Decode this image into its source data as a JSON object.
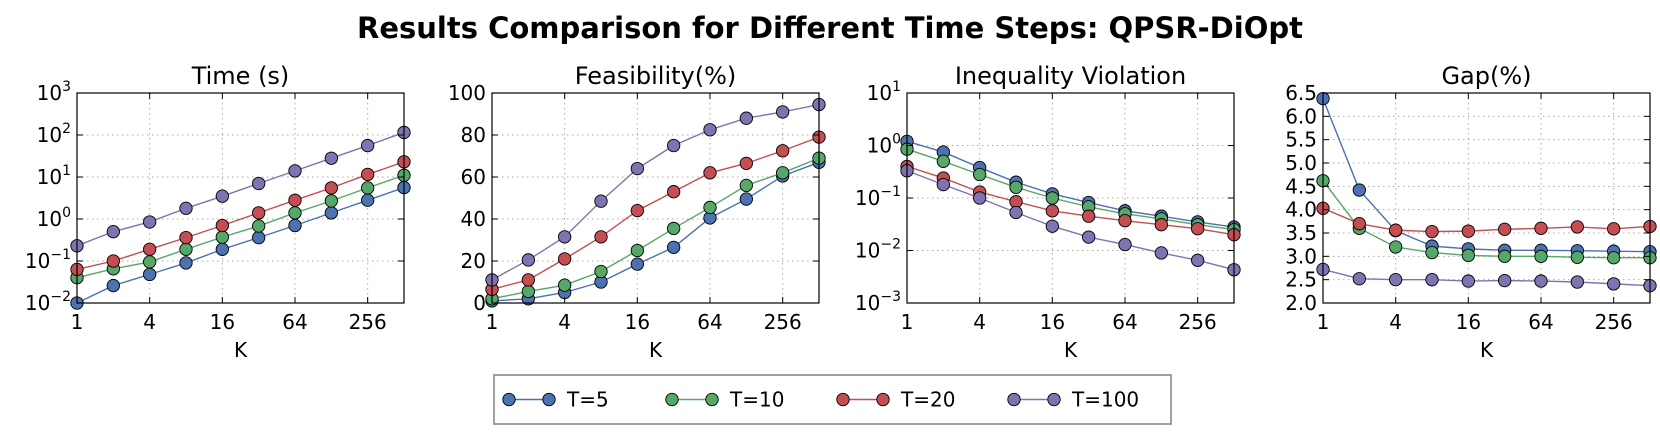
{
  "figure": {
    "title": "Results Comparison for Different Time Steps: QPSR-DiOpt",
    "colors": {
      "T=5": "#4c72b0",
      "T=10": "#55a868",
      "T=20": "#c44e52",
      "T=100": "#8172b2"
    }
  },
  "legend": {
    "placement": "bottom-center",
    "entries": [
      "T=5",
      "T=10",
      "T=20",
      "T=100"
    ]
  },
  "chart_data": [
    {
      "type": "line",
      "title": "Time (s)",
      "xlabel": "K",
      "ylabel": "",
      "xscale": "log2",
      "yscale": "log10",
      "x": [
        1,
        2,
        4,
        8,
        16,
        32,
        64,
        128,
        256,
        512
      ],
      "xticks": [
        1,
        4,
        16,
        64,
        256
      ],
      "xticklabels": [
        "1",
        "4",
        "16",
        "64",
        "256"
      ],
      "ylim": [
        0.01,
        1000
      ],
      "yticks": [
        0.01,
        0.1,
        1,
        10,
        100,
        1000
      ],
      "yticklabels": [
        [
          "10",
          "−2"
        ],
        [
          "10",
          "−1"
        ],
        [
          "10",
          "0"
        ],
        [
          "10",
          "1"
        ],
        [
          "10",
          "2"
        ],
        [
          "10",
          "3"
        ]
      ],
      "grid": true,
      "series": [
        {
          "name": "T=5",
          "values": [
            0.01,
            0.026,
            0.048,
            0.09,
            0.19,
            0.36,
            0.7,
            1.4,
            2.8,
            5.6
          ]
        },
        {
          "name": "T=10",
          "values": [
            0.04,
            0.065,
            0.095,
            0.19,
            0.37,
            0.68,
            1.4,
            2.7,
            5.5,
            11
          ]
        },
        {
          "name": "T=20",
          "values": [
            0.063,
            0.1,
            0.19,
            0.36,
            0.7,
            1.4,
            2.8,
            5.5,
            11.5,
            23
          ]
        },
        {
          "name": "T=100",
          "values": [
            0.23,
            0.5,
            0.85,
            1.8,
            3.5,
            7,
            14,
            28,
            56,
            115
          ]
        }
      ]
    },
    {
      "type": "line",
      "title": "Feasibility(%)",
      "xlabel": "K",
      "ylabel": "",
      "xscale": "log2",
      "yscale": "linear",
      "x": [
        1,
        2,
        4,
        8,
        16,
        32,
        64,
        128,
        256,
        512
      ],
      "xticks": [
        1,
        4,
        16,
        64,
        256
      ],
      "xticklabels": [
        "1",
        "4",
        "16",
        "64",
        "256"
      ],
      "ylim": [
        0,
        100
      ],
      "yticks": [
        0,
        20,
        40,
        60,
        80,
        100
      ],
      "yticklabels": [
        [
          "0",
          ""
        ],
        [
          "20",
          ""
        ],
        [
          "40",
          ""
        ],
        [
          "60",
          ""
        ],
        [
          "80",
          ""
        ],
        [
          "100",
          ""
        ]
      ],
      "grid": true,
      "series": [
        {
          "name": "T=5",
          "values": [
            1,
            2,
            5,
            10,
            18.5,
            26.5,
            40.5,
            49.5,
            60.5,
            67
          ]
        },
        {
          "name": "T=10",
          "values": [
            2,
            5.5,
            8.5,
            15,
            25,
            35.5,
            45.5,
            56,
            62,
            69
          ]
        },
        {
          "name": "T=20",
          "values": [
            6.5,
            11,
            21,
            31.5,
            44,
            53,
            62,
            66.5,
            72.5,
            79
          ]
        },
        {
          "name": "T=100",
          "values": [
            11,
            20.5,
            31.5,
            48.5,
            64,
            75,
            82.5,
            88,
            91,
            94.5
          ]
        }
      ]
    },
    {
      "type": "line",
      "title": "Inequality Violation",
      "xlabel": "K",
      "ylabel": "",
      "xscale": "log2",
      "yscale": "log10",
      "x": [
        1,
        2,
        4,
        8,
        16,
        32,
        64,
        128,
        256,
        512
      ],
      "xticks": [
        1,
        4,
        16,
        64,
        256
      ],
      "xticklabels": [
        "1",
        "4",
        "16",
        "64",
        "256"
      ],
      "ylim": [
        0.001,
        10
      ],
      "yticks": [
        0.001,
        0.01,
        0.1,
        1,
        10
      ],
      "yticklabels": [
        [
          "10",
          "−3"
        ],
        [
          "10",
          "−2"
        ],
        [
          "10",
          "−1"
        ],
        [
          "10",
          "0"
        ],
        [
          "10",
          "1"
        ]
      ],
      "grid": true,
      "series": [
        {
          "name": "T=5",
          "values": [
            1.2,
            0.75,
            0.38,
            0.2,
            0.12,
            0.082,
            0.057,
            0.045,
            0.035,
            0.028
          ]
        },
        {
          "name": "T=10",
          "values": [
            0.85,
            0.5,
            0.28,
            0.16,
            0.1,
            0.068,
            0.05,
            0.04,
            0.031,
            0.025
          ]
        },
        {
          "name": "T=20",
          "values": [
            0.4,
            0.24,
            0.13,
            0.085,
            0.057,
            0.045,
            0.037,
            0.031,
            0.026,
            0.02
          ]
        },
        {
          "name": "T=100",
          "values": [
            0.33,
            0.18,
            0.1,
            0.053,
            0.029,
            0.018,
            0.013,
            0.009,
            0.0065,
            0.0043
          ]
        }
      ]
    },
    {
      "type": "line",
      "title": "Gap(%)",
      "xlabel": "K",
      "ylabel": "",
      "xscale": "log2",
      "yscale": "linear",
      "x": [
        1,
        2,
        4,
        8,
        16,
        32,
        64,
        128,
        256,
        512
      ],
      "xticks": [
        1,
        4,
        16,
        64,
        256
      ],
      "xticklabels": [
        "1",
        "4",
        "16",
        "64",
        "256"
      ],
      "ylim": [
        2.0,
        6.5
      ],
      "yticks": [
        2.0,
        2.5,
        3.0,
        3.5,
        4.0,
        4.5,
        5.0,
        5.5,
        6.0,
        6.5
      ],
      "yticklabels": [
        [
          "2.0",
          ""
        ],
        [
          "2.5",
          ""
        ],
        [
          "3.0",
          ""
        ],
        [
          "3.5",
          ""
        ],
        [
          "4.0",
          ""
        ],
        [
          "4.5",
          ""
        ],
        [
          "5.0",
          ""
        ],
        [
          "5.5",
          ""
        ],
        [
          "6.0",
          ""
        ],
        [
          "6.5",
          ""
        ]
      ],
      "grid": true,
      "series": [
        {
          "name": "T=5",
          "values": [
            6.38,
            4.42,
            3.55,
            3.22,
            3.16,
            3.13,
            3.13,
            3.12,
            3.11,
            3.1
          ]
        },
        {
          "name": "T=10",
          "values": [
            4.62,
            3.6,
            3.2,
            3.08,
            3.02,
            3.0,
            3.0,
            2.98,
            2.97,
            2.97
          ]
        },
        {
          "name": "T=20",
          "values": [
            4.03,
            3.7,
            3.56,
            3.53,
            3.54,
            3.58,
            3.6,
            3.63,
            3.59,
            3.64
          ]
        },
        {
          "name": "T=100",
          "values": [
            2.72,
            2.52,
            2.5,
            2.5,
            2.47,
            2.48,
            2.47,
            2.45,
            2.41,
            2.37
          ]
        }
      ]
    }
  ]
}
